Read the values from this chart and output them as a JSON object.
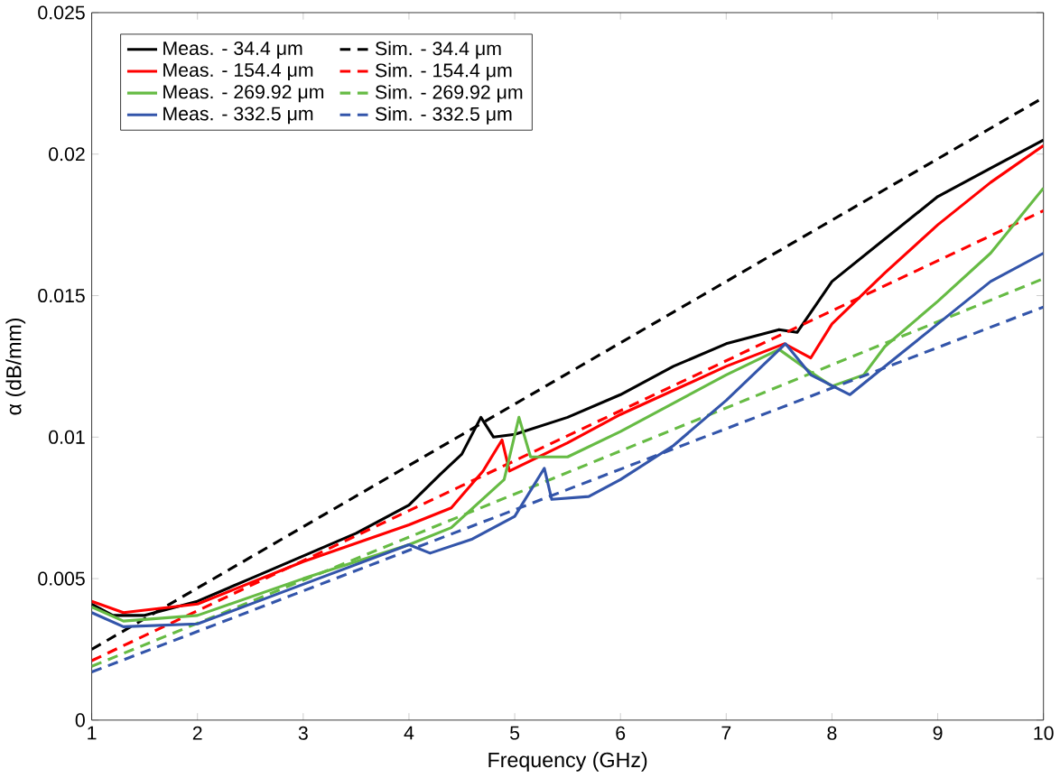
{
  "chart_data": {
    "type": "line",
    "xlabel": "Frequency (GHz)",
    "ylabel": "α (dB/mm)",
    "xlim": [
      1,
      10
    ],
    "ylim": [
      0,
      0.025
    ],
    "xticks": [
      1,
      2,
      3,
      4,
      5,
      6,
      7,
      8,
      9,
      10
    ],
    "yticks": [
      0,
      0.005,
      0.01,
      0.015,
      0.02,
      0.025
    ],
    "legend": "top left",
    "grid": false,
    "series": [
      {
        "name": "Meas. - 34.4 μm",
        "color": "#000000",
        "line_style": "solid",
        "x": [
          1,
          1.2,
          1.5,
          2,
          2.5,
          3,
          3.5,
          4,
          4.3,
          4.5,
          4.68,
          4.8,
          5,
          5.5,
          6,
          6.5,
          7,
          7.5,
          7.67,
          8,
          8.5,
          9,
          9.5,
          10
        ],
        "values": [
          0.0041,
          0.0037,
          0.0037,
          0.0042,
          0.005,
          0.0058,
          0.0066,
          0.0076,
          0.0087,
          0.0094,
          0.0107,
          0.01,
          0.0101,
          0.0107,
          0.0115,
          0.0125,
          0.0133,
          0.0138,
          0.0137,
          0.0155,
          0.017,
          0.0185,
          0.0195,
          0.0205
        ]
      },
      {
        "name": "Sim. - 34.4 μm",
        "color": "#000000",
        "line_style": "dashed",
        "x": [
          1,
          10
        ],
        "values": [
          0.0025,
          0.022
        ]
      },
      {
        "name": "Meas. - 154.4 μm",
        "color": "#ff0000",
        "line_style": "solid",
        "x": [
          1,
          1.3,
          2,
          3,
          4,
          4.4,
          4.7,
          4.88,
          4.95,
          5.5,
          6,
          7,
          7.55,
          7.8,
          8,
          8.5,
          9,
          9.5,
          10
        ],
        "values": [
          0.0042,
          0.0038,
          0.0041,
          0.0056,
          0.0069,
          0.0075,
          0.0088,
          0.0099,
          0.0088,
          0.0098,
          0.0108,
          0.0125,
          0.0133,
          0.0128,
          0.014,
          0.0158,
          0.0175,
          0.019,
          0.0203
        ]
      },
      {
        "name": "Sim. - 154.4 μm",
        "color": "#ff0000",
        "line_style": "dashed",
        "x": [
          1,
          10
        ],
        "values": [
          0.0021,
          0.018
        ]
      },
      {
        "name": "Meas. - 269.92 μm",
        "color": "#66bb44",
        "line_style": "solid",
        "x": [
          1,
          1.3,
          2,
          3,
          4,
          4.4,
          4.9,
          5.04,
          5.15,
          5.5,
          6,
          6.5,
          7,
          7.5,
          7.8,
          8,
          8.3,
          8.5,
          9,
          9.5,
          10
        ],
        "values": [
          0.004,
          0.0035,
          0.0037,
          0.005,
          0.0062,
          0.0068,
          0.0085,
          0.0107,
          0.0093,
          0.0093,
          0.0102,
          0.0112,
          0.0122,
          0.0131,
          0.0123,
          0.0118,
          0.0122,
          0.0132,
          0.0148,
          0.0165,
          0.0188
        ]
      },
      {
        "name": "Sim. - 269.92 μm",
        "color": "#66bb44",
        "line_style": "dashed",
        "x": [
          1,
          10
        ],
        "values": [
          0.0019,
          0.0156
        ]
      },
      {
        "name": "Meas. - 332.5 μm",
        "color": "#3355aa",
        "line_style": "solid",
        "x": [
          1,
          1.3,
          2,
          3,
          4,
          4.2,
          4.6,
          5,
          5.28,
          5.35,
          5.7,
          6,
          6.5,
          7,
          7.56,
          7.8,
          8.17,
          8.5,
          9,
          9.5,
          10
        ],
        "values": [
          0.0038,
          0.0033,
          0.0034,
          0.0048,
          0.0062,
          0.0059,
          0.0064,
          0.0072,
          0.0089,
          0.0078,
          0.0079,
          0.0085,
          0.0097,
          0.0113,
          0.0133,
          0.0122,
          0.0115,
          0.0125,
          0.014,
          0.0155,
          0.0165
        ]
      },
      {
        "name": "Sim. - 332.5 μm",
        "color": "#3355aa",
        "line_style": "dashed",
        "x": [
          1,
          10
        ],
        "values": [
          0.0017,
          0.0146
        ]
      }
    ]
  }
}
